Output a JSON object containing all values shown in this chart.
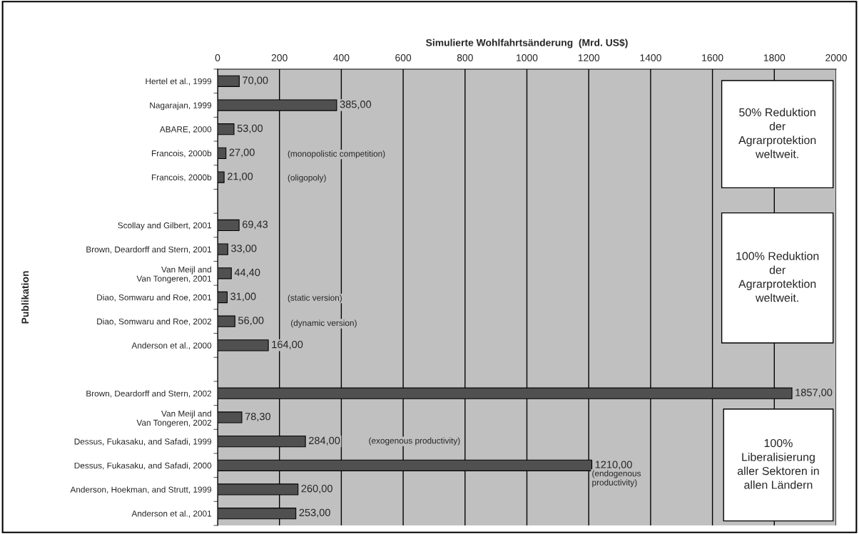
{
  "chart_data": {
    "type": "bar",
    "orientation": "horizontal",
    "xlabel": "Simulierte Wohlfahrtsänderung  (Mrd. US$)",
    "ylabel": "Publikation",
    "categories": [
      "Hertel et al., 1999",
      "Nagarajan, 1999",
      "ABARE, 2000",
      "Francois, 2000b",
      "Francois, 2000b",
      null,
      "Scollay and Gilbert, 2001",
      "Brown, Deardorff and Stern, 2001",
      "Van Meijl and\nVan Tongeren, 2001",
      "Diao, Somwaru and Roe, 2001",
      "Diao, Somwaru and Roe, 2002",
      "Anderson et al., 2000",
      null,
      "Brown, Deardorff and Stern, 2002",
      "Van Meijl and\nVan Tongeren, 2002",
      "Dessus, Fukasaku, and Safadi, 1999",
      "Dessus, Fukasaku, and Safadi, 2000",
      "Anderson, Hoekman, and Strutt, 1999",
      "Anderson et al., 2001"
    ],
    "values": [
      70,
      385,
      53,
      27,
      21,
      null,
      69.43,
      33,
      44.4,
      31,
      56,
      164,
      null,
      1857,
      78.3,
      284,
      1210,
      260,
      253
    ],
    "value_labels": [
      "70,00",
      "385,00",
      "53,00",
      "27,00",
      "21,00",
      null,
      "69,43",
      "33,00",
      "44,40",
      "31,00",
      "56,00",
      "164,00",
      null,
      "1857,00",
      "78,30",
      "284,00",
      "1210,00",
      "260,00",
      "253,00"
    ],
    "color": "#505050",
    "xlim": [
      0,
      2000
    ],
    "xticks": [
      0,
      200,
      400,
      600,
      800,
      1000,
      1200,
      1400,
      1600,
      1800,
      2000
    ],
    "grid": "x",
    "annotations": [
      "(monopolistic competition)",
      "(oligopoly)",
      "(static version)",
      "(dynamic version)",
      "(exogenous productivity)",
      "(endogenous\nproductivity)",
      "50% Reduktion\nder\nAgrarprotektion\nweltweit.",
      "100% Reduktion\nder\nAgrarprotektion\nweltweit.",
      "100%\nLiberalisierung\naller Sektoren in\nallen Ländern"
    ]
  }
}
